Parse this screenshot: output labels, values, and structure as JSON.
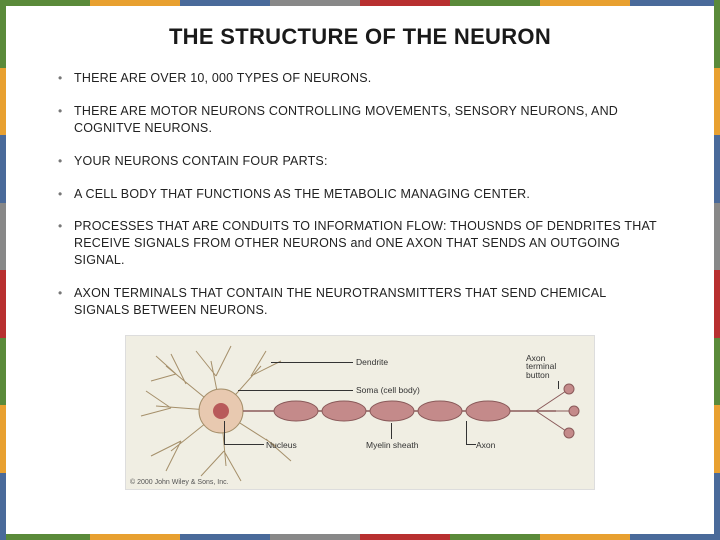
{
  "title": "THE STRUCTURE OF THE NEURON",
  "bullets": [
    "THERE ARE OVER 10, 000 TYPES OF NEURONS.",
    "THERE ARE MOTOR NEURONS CONTROLLING MOVEMENTS, SENSORY NEURONS, AND COGNITVE NEURONS.",
    "YOUR NEURONS CONTAIN FOUR PARTS:",
    "A CELL BODY THAT FUNCTIONS AS THE METABOLIC MANAGING CENTER.",
    "PROCESSES THAT ARE CONDUITS TO INFORMATION FLOW: THOUSNDS OF DENDRITES THAT RECEIVE SIGNALS FROM OTHER NEURONS and ONE AXON THAT SENDS AN OUTGOING SIGNAL.",
    "AXON TERMINALS THAT CONTAIN THE NEUROTRANSMITTERS THAT SEND CHEMICAL SIGNALS BETWEEN NEURONS."
  ],
  "figure": {
    "background": "#f0eee3",
    "soma_color": "#e8c9b0",
    "nucleus_color": "#b85a5a",
    "dendrite_color": "#a58f6a",
    "axon_color": "#c48a8a",
    "myelin_stroke": "#8a5a5a",
    "labels": {
      "dendrite": "Dendrite",
      "soma": "Soma (cell body)",
      "nucleus": "Nucleus",
      "axon": "Axon",
      "myelin": "Myelin sheath",
      "terminal": "Axon\nterminal\nbutton"
    },
    "copyright": "© 2000 John Wiley & Sons, Inc."
  },
  "border_colors": [
    "#5a8a3a",
    "#e8a030",
    "#4a6a9a",
    "#888888",
    "#b83030",
    "#5a8a3a",
    "#e8a030",
    "#4a6a9a"
  ]
}
